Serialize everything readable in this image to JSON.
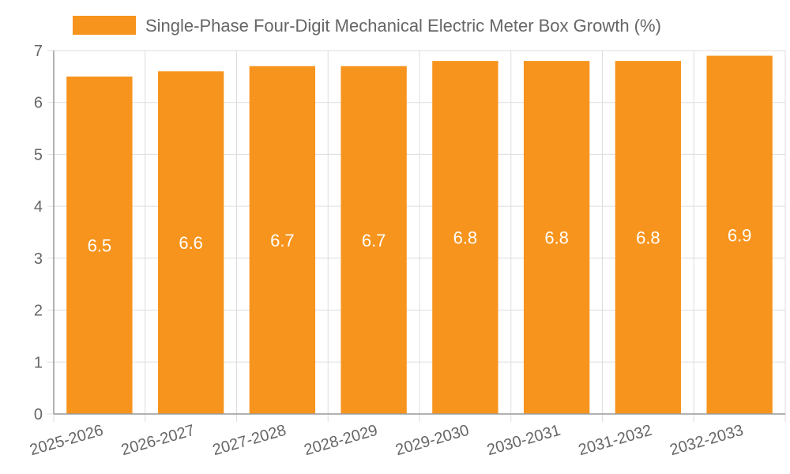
{
  "chart_data": {
    "type": "bar",
    "categories": [
      "2025-2026",
      "2026-2027",
      "2027-2028",
      "2028-2029",
      "2029-2030",
      "2030-2031",
      "2031-2032",
      "2032-2033"
    ],
    "series": [
      {
        "name": "Single-Phase Four-Digit Mechanical Electric Meter Box Growth (%)",
        "values": [
          6.5,
          6.6,
          6.7,
          6.7,
          6.8,
          6.8,
          6.8,
          6.9
        ],
        "color": "#f7941d"
      }
    ],
    "yticks": [
      "0",
      "1",
      "2",
      "3",
      "4",
      "5",
      "6",
      "7"
    ],
    "ylim": [
      0,
      7
    ],
    "grid": true,
    "legend_position": "top",
    "data_labels": [
      "6.5",
      "6.6",
      "6.7",
      "6.7",
      "6.8",
      "6.8",
      "6.8",
      "6.9"
    ]
  },
  "colors": {
    "bar": "#f7941d",
    "grid": "#dddddd",
    "axis": "#999999",
    "text": "#666666"
  }
}
